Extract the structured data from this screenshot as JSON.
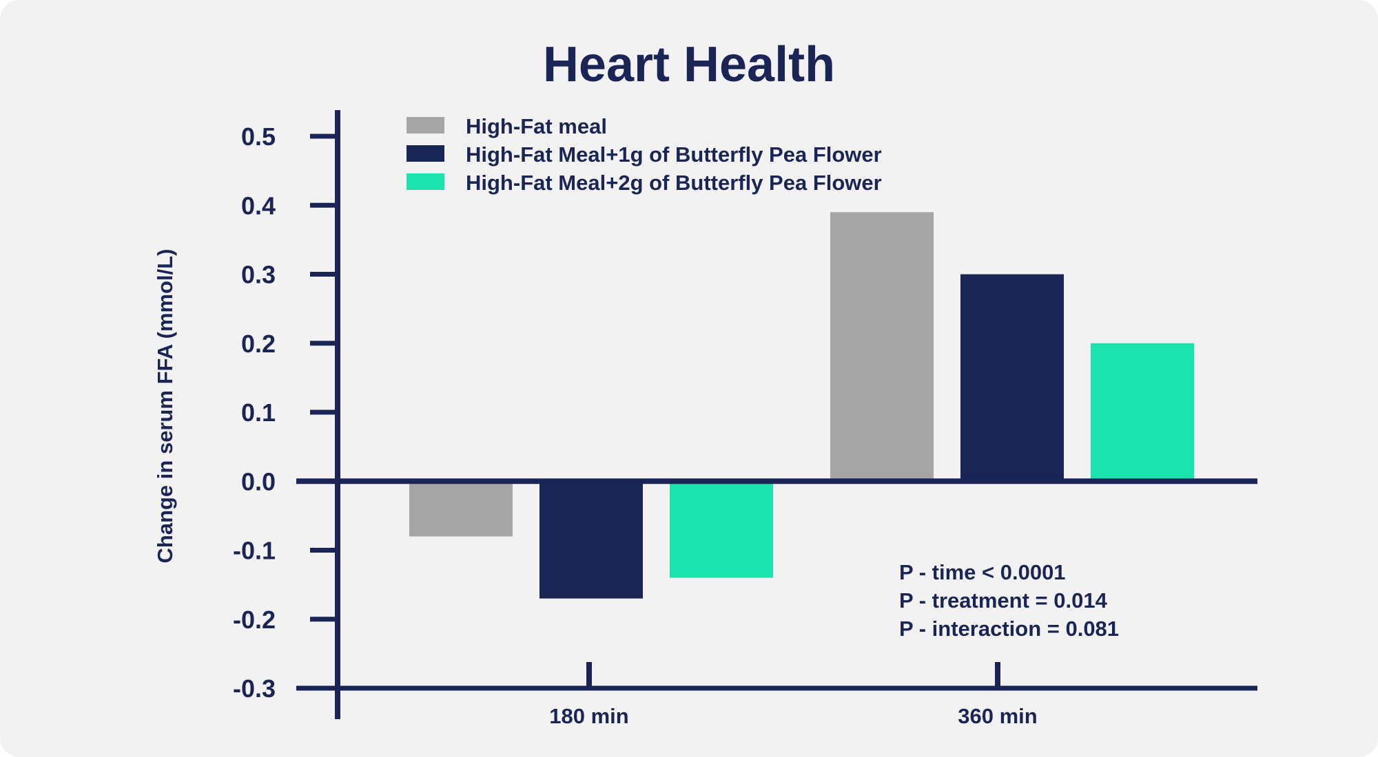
{
  "colors": {
    "background": "#f2f2f2",
    "axis": "#1b2555",
    "text": "#1b2555",
    "gray": "#a5a5a5",
    "navy": "#1b2555",
    "teal": "#1ae3ae"
  },
  "chart_data": {
    "type": "bar",
    "title": "Heart Health",
    "xlabel": "",
    "ylabel": "Change in serum FFA (mmol/L)",
    "categories": [
      "180 min",
      "360 min"
    ],
    "ylim": [
      -0.3,
      0.5
    ],
    "yticks": [
      "0.5",
      "0.4",
      "0.3",
      "0.2",
      "0.1",
      "0.0",
      "-0.1",
      "-0.2",
      "-0.3"
    ],
    "grid": false,
    "legend_position": "top-left",
    "series": [
      {
        "name": "High-Fat meal",
        "color": "#a5a5a5",
        "values": [
          -0.08,
          0.39
        ]
      },
      {
        "name": "High-Fat Meal+1g of Butterfly Pea Flower",
        "color": "#1b2555",
        "values": [
          -0.17,
          0.3
        ]
      },
      {
        "name": "High-Fat Meal+2g of Butterfly Pea Flower",
        "color": "#1ae3ae",
        "values": [
          -0.14,
          0.2
        ]
      }
    ],
    "annotations": [
      "P - time < 0.0001",
      "P - treatment = 0.014",
      "P - interaction = 0.081"
    ]
  }
}
